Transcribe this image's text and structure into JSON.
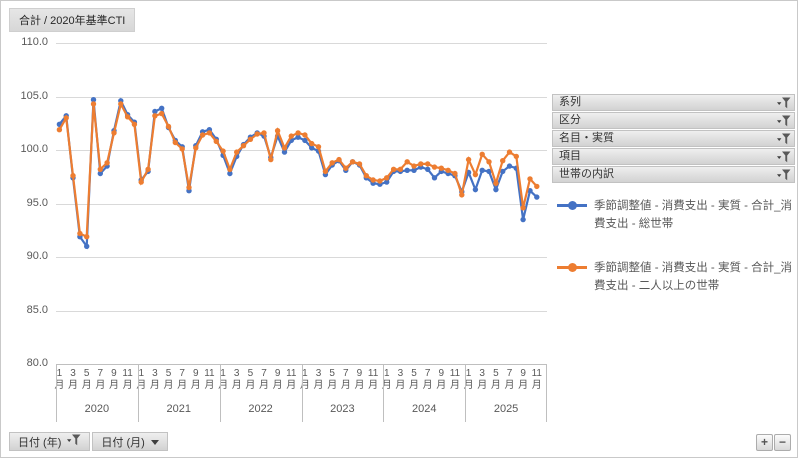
{
  "title_button": "合計 / 2020年基準CTI",
  "y_axis": {
    "labels": [
      "110.0",
      "105.0",
      "100.0",
      "95.0",
      "90.0",
      "85.0",
      "80.0"
    ]
  },
  "filters": [
    "系列",
    "区分",
    "名目・実質",
    "項目",
    "世帯の内訳"
  ],
  "axis_buttons": {
    "year": "日付 (年)",
    "month": "日付 (月)"
  },
  "zoom_buttons": {
    "plus": "+",
    "minus": "−"
  },
  "colors": {
    "series1": "#4472C4",
    "series2": "#ED7D31",
    "gridline": "#D9D9D9",
    "axis_text": "#595959"
  },
  "chart_data": {
    "type": "line",
    "title": "合計 / 2020年基準CTI",
    "ylabel": "",
    "xlabel": "日付 (年 / 月)",
    "ylim": [
      80,
      110
    ],
    "y_ticks": [
      80,
      85,
      90,
      95,
      100,
      105,
      110
    ],
    "grid": true,
    "legend_position": "right",
    "x_years": [
      "2020",
      "2021",
      "2022",
      "2023",
      "2024",
      "2025"
    ],
    "x_month_ticks": [
      1,
      3,
      5,
      7,
      9,
      11
    ],
    "x": [
      "2020-01",
      "2020-02",
      "2020-03",
      "2020-04",
      "2020-05",
      "2020-06",
      "2020-07",
      "2020-08",
      "2020-09",
      "2020-10",
      "2020-11",
      "2020-12",
      "2021-01",
      "2021-02",
      "2021-03",
      "2021-04",
      "2021-05",
      "2021-06",
      "2021-07",
      "2021-08",
      "2021-09",
      "2021-10",
      "2021-11",
      "2021-12",
      "2022-01",
      "2022-02",
      "2022-03",
      "2022-04",
      "2022-05",
      "2022-06",
      "2022-07",
      "2022-08",
      "2022-09",
      "2022-10",
      "2022-11",
      "2022-12",
      "2023-01",
      "2023-02",
      "2023-03",
      "2023-04",
      "2023-05",
      "2023-06",
      "2023-07",
      "2023-08",
      "2023-09",
      "2023-10",
      "2023-11",
      "2023-12",
      "2024-01",
      "2024-02",
      "2024-03",
      "2024-04",
      "2024-05",
      "2024-06",
      "2024-07",
      "2024-08",
      "2024-09",
      "2024-10",
      "2024-11",
      "2024-12",
      "2025-01",
      "2025-02",
      "2025-03",
      "2025-04",
      "2025-05",
      "2025-06",
      "2025-07",
      "2025-08",
      "2025-09",
      "2025-10",
      "2025-11"
    ],
    "series": [
      {
        "name": "季節調整値 - 消費支出 - 実質 - 合計_消費支出 - 総世帯",
        "color": "#4472C4",
        "values": [
          102.4,
          103.2,
          97.4,
          91.9,
          91.0,
          104.7,
          97.8,
          98.5,
          101.8,
          104.6,
          103.3,
          102.6,
          97.2,
          98.0,
          103.6,
          103.9,
          102.1,
          100.9,
          100.3,
          96.2,
          100.4,
          101.7,
          101.9,
          101.0,
          99.5,
          97.8,
          99.4,
          100.5,
          101.2,
          101.6,
          101.3,
          99.3,
          101.3,
          99.8,
          100.9,
          101.2,
          100.9,
          100.2,
          99.9,
          97.7,
          98.6,
          99.0,
          98.1,
          98.9,
          98.6,
          97.4,
          96.9,
          96.8,
          97.0,
          98.0,
          98.0,
          98.1,
          98.1,
          98.4,
          98.2,
          97.4,
          98.0,
          97.8,
          97.6,
          96.1,
          97.9,
          96.3,
          98.1,
          98.0,
          96.3,
          98.0,
          98.5,
          98.3,
          93.5,
          96.2,
          95.6
        ]
      },
      {
        "name": "季節調整値 - 消費支出 - 実質 - 合計_消費支出 - 二人以上の世帯",
        "color": "#ED7D31",
        "values": [
          101.9,
          103.0,
          97.6,
          92.2,
          91.9,
          104.3,
          98.2,
          98.8,
          101.6,
          104.3,
          103.1,
          102.4,
          97.0,
          98.2,
          103.2,
          103.4,
          102.2,
          100.7,
          100.1,
          96.5,
          100.2,
          101.4,
          101.6,
          100.8,
          99.9,
          98.2,
          99.8,
          100.4,
          101.0,
          101.5,
          101.6,
          99.1,
          101.8,
          100.2,
          101.3,
          101.6,
          101.4,
          100.6,
          100.3,
          98.0,
          98.8,
          99.1,
          98.3,
          98.9,
          98.7,
          97.6,
          97.2,
          97.1,
          97.4,
          98.2,
          98.2,
          98.9,
          98.5,
          98.7,
          98.7,
          98.4,
          98.3,
          98.1,
          97.8,
          95.8,
          99.1,
          97.7,
          99.6,
          98.9,
          96.9,
          99.0,
          99.8,
          99.4,
          94.6,
          97.3,
          96.6
        ]
      }
    ]
  }
}
